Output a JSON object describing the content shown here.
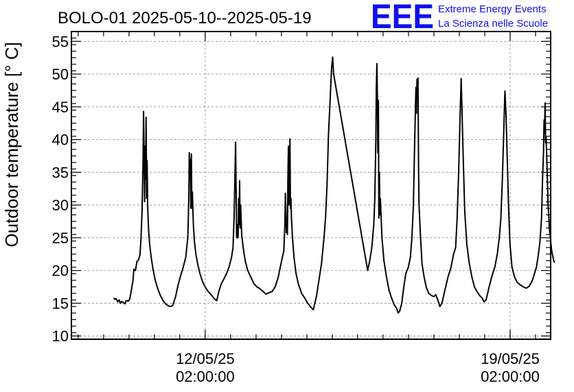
{
  "title": "BOLO-01 2025-05-10--2025-05-19",
  "logo": {
    "mark": "EEE",
    "line1": "Extreme Energy Events",
    "line2": "La Scienza nelle Scuole",
    "color": "#1010ee"
  },
  "chart_data": {
    "type": "line",
    "title": "BOLO-01 2025-05-10--2025-05-19",
    "ylabel": "Outdoor temperature [° C]",
    "xlabel": "",
    "ylim": [
      9.5,
      56.5
    ],
    "y_ticks": [
      10,
      15,
      20,
      25,
      30,
      35,
      40,
      45,
      50,
      55
    ],
    "x_unit": "days since 2025-05-10 00:00",
    "xlim": [
      -0.55,
      8.88
    ],
    "x_ticks": [
      {
        "x": 2.083,
        "line1": "12/05/25",
        "line2": "02:00:00"
      },
      {
        "x": 8.083,
        "line1": "19/05/25",
        "line2": "02:00:00"
      }
    ],
    "grid": true,
    "series": [
      {
        "values": [
          [
            0.28,
            15.8
          ],
          [
            0.31,
            15.6
          ],
          [
            0.33,
            15.7
          ],
          [
            0.36,
            15.2
          ],
          [
            0.39,
            15.5
          ],
          [
            0.41,
            15.0
          ],
          [
            0.44,
            15.3
          ],
          [
            0.47,
            15.1
          ],
          [
            0.5,
            14.9
          ],
          [
            0.53,
            15.4
          ],
          [
            0.57,
            15.3
          ],
          [
            0.6,
            15.7
          ],
          [
            0.63,
            17.0
          ],
          [
            0.66,
            18.4
          ],
          [
            0.68,
            20.2
          ],
          [
            0.71,
            20.0
          ],
          [
            0.74,
            21.4
          ],
          [
            0.77,
            21.6
          ],
          [
            0.8,
            22.4
          ],
          [
            0.82,
            25.0
          ],
          [
            0.84,
            29.0
          ],
          [
            0.86,
            37.0
          ],
          [
            0.87,
            44.3
          ],
          [
            0.88,
            38.5
          ],
          [
            0.89,
            30.5
          ],
          [
            0.9,
            39.0
          ],
          [
            0.91,
            34.0
          ],
          [
            0.92,
            43.4
          ],
          [
            0.93,
            31.0
          ],
          [
            0.94,
            36.8
          ],
          [
            0.95,
            30.0
          ],
          [
            0.97,
            26.0
          ],
          [
            0.99,
            24.0
          ],
          [
            1.02,
            22.0
          ],
          [
            1.06,
            20.0
          ],
          [
            1.1,
            18.5
          ],
          [
            1.15,
            17.2
          ],
          [
            1.2,
            16.2
          ],
          [
            1.26,
            15.3
          ],
          [
            1.32,
            14.8
          ],
          [
            1.38,
            14.5
          ],
          [
            1.44,
            14.6
          ],
          [
            1.5,
            16.0
          ],
          [
            1.55,
            17.8
          ],
          [
            1.6,
            19.2
          ],
          [
            1.65,
            20.5
          ],
          [
            1.7,
            22.0
          ],
          [
            1.74,
            25.0
          ],
          [
            1.76,
            31.0
          ],
          [
            1.77,
            38.0
          ],
          [
            1.78,
            34.0
          ],
          [
            1.79,
            37.0
          ],
          [
            1.8,
            29.5
          ],
          [
            1.81,
            37.8
          ],
          [
            1.82,
            29.5
          ],
          [
            1.83,
            32.0
          ],
          [
            1.85,
            27.0
          ],
          [
            1.87,
            24.5
          ],
          [
            1.9,
            22.5
          ],
          [
            1.94,
            20.8
          ],
          [
            1.98,
            19.5
          ],
          [
            2.03,
            18.3
          ],
          [
            2.08,
            17.5
          ],
          [
            2.14,
            16.8
          ],
          [
            2.2,
            16.3
          ],
          [
            2.26,
            15.7
          ],
          [
            2.31,
            15.4
          ],
          [
            2.35,
            16.8
          ],
          [
            2.4,
            18.0
          ],
          [
            2.45,
            18.7
          ],
          [
            2.5,
            19.5
          ],
          [
            2.55,
            20.5
          ],
          [
            2.6,
            22.0
          ],
          [
            2.63,
            23.5
          ],
          [
            2.65,
            28.0
          ],
          [
            2.67,
            35.0
          ],
          [
            2.68,
            39.6
          ],
          [
            2.69,
            33.0
          ],
          [
            2.7,
            25.0
          ],
          [
            2.71,
            27.0
          ],
          [
            2.73,
            25.0
          ],
          [
            2.74,
            31.0
          ],
          [
            2.75,
            27.0
          ],
          [
            2.76,
            33.7
          ],
          [
            2.77,
            26.5
          ],
          [
            2.78,
            30.0
          ],
          [
            2.8,
            25.5
          ],
          [
            2.83,
            23.5
          ],
          [
            2.87,
            21.5
          ],
          [
            2.92,
            20.0
          ],
          [
            2.98,
            19.0
          ],
          [
            3.04,
            18.0
          ],
          [
            3.1,
            17.5
          ],
          [
            3.16,
            17.2
          ],
          [
            3.22,
            16.8
          ],
          [
            3.28,
            16.4
          ],
          [
            3.34,
            16.6
          ],
          [
            3.4,
            16.8
          ],
          [
            3.46,
            17.5
          ],
          [
            3.52,
            19.0
          ],
          [
            3.56,
            20.5
          ],
          [
            3.6,
            22.0
          ],
          [
            3.63,
            23.0
          ],
          [
            3.65,
            27.0
          ],
          [
            3.66,
            31.8
          ],
          [
            3.67,
            29.0
          ],
          [
            3.68,
            25.8
          ],
          [
            3.69,
            28.0
          ],
          [
            3.7,
            25.5
          ],
          [
            3.71,
            34.0
          ],
          [
            3.72,
            39.0
          ],
          [
            3.73,
            30.0
          ],
          [
            3.74,
            35.0
          ],
          [
            3.75,
            40.1
          ],
          [
            3.76,
            29.5
          ],
          [
            3.77,
            31.0
          ],
          [
            3.78,
            28.0
          ],
          [
            3.8,
            25.0
          ],
          [
            3.83,
            22.0
          ],
          [
            3.87,
            19.5
          ],
          [
            3.92,
            17.8
          ],
          [
            3.98,
            16.5
          ],
          [
            4.04,
            15.8
          ],
          [
            4.1,
            15.0
          ],
          [
            4.16,
            14.4
          ],
          [
            4.21,
            14.0
          ],
          [
            4.27,
            16.0
          ],
          [
            4.32,
            18.5
          ],
          [
            4.37,
            21.0
          ],
          [
            4.42,
            25.0
          ],
          [
            4.45,
            28.0
          ],
          [
            4.48,
            33.0
          ],
          [
            4.51,
            41.0
          ],
          [
            4.54,
            46.0
          ],
          [
            4.57,
            51.0
          ],
          [
            4.59,
            52.6
          ],
          [
            4.61,
            50.0
          ],
          [
            5.28,
            20.0
          ],
          [
            5.32,
            21.5
          ],
          [
            5.36,
            23.5
          ],
          [
            5.4,
            27.0
          ],
          [
            5.42,
            31.0
          ],
          [
            5.44,
            40.0
          ],
          [
            5.45,
            48.0
          ],
          [
            5.46,
            51.6
          ],
          [
            5.47,
            47.0
          ],
          [
            5.48,
            38.0
          ],
          [
            5.49,
            46.0
          ],
          [
            5.5,
            28.0
          ],
          [
            5.51,
            35.0
          ],
          [
            5.52,
            28.5
          ],
          [
            5.53,
            31.0
          ],
          [
            5.56,
            25.0
          ],
          [
            5.6,
            21.5
          ],
          [
            5.65,
            19.0
          ],
          [
            5.7,
            17.0
          ],
          [
            5.75,
            15.8
          ],
          [
            5.8,
            14.8
          ],
          [
            5.85,
            14.2
          ],
          [
            5.88,
            13.5
          ],
          [
            5.91,
            13.8
          ],
          [
            5.95,
            15.0
          ],
          [
            5.99,
            17.5
          ],
          [
            6.03,
            19.5
          ],
          [
            6.08,
            20.5
          ],
          [
            6.12,
            22.0
          ],
          [
            6.15,
            25.0
          ],
          [
            6.18,
            30.0
          ],
          [
            6.2,
            38.0
          ],
          [
            6.22,
            45.0
          ],
          [
            6.23,
            48.0
          ],
          [
            6.24,
            44.0
          ],
          [
            6.25,
            49.2
          ],
          [
            6.26,
            47.0
          ],
          [
            6.27,
            49.4
          ],
          [
            6.28,
            36.0
          ],
          [
            6.29,
            30.0
          ],
          [
            6.32,
            25.0
          ],
          [
            6.35,
            21.0
          ],
          [
            6.39,
            19.0
          ],
          [
            6.43,
            17.5
          ],
          [
            6.48,
            16.5
          ],
          [
            6.53,
            16.2
          ],
          [
            6.58,
            16.0
          ],
          [
            6.62,
            16.3
          ],
          [
            6.66,
            15.5
          ],
          [
            6.7,
            14.5
          ],
          [
            6.74,
            15.0
          ],
          [
            6.8,
            17.0
          ],
          [
            6.86,
            19.0
          ],
          [
            6.92,
            20.5
          ],
          [
            6.97,
            22.5
          ],
          [
            7.01,
            23.5
          ],
          [
            7.04,
            28.0
          ],
          [
            7.07,
            35.0
          ],
          [
            7.1,
            44.0
          ],
          [
            7.12,
            49.3
          ],
          [
            7.14,
            43.0
          ],
          [
            7.16,
            37.0
          ],
          [
            7.19,
            29.0
          ],
          [
            7.23,
            24.0
          ],
          [
            7.28,
            21.0
          ],
          [
            7.33,
            19.0
          ],
          [
            7.38,
            17.5
          ],
          [
            7.43,
            16.8
          ],
          [
            7.48,
            16.2
          ],
          [
            7.53,
            15.8
          ],
          [
            7.57,
            15.2
          ],
          [
            7.61,
            15.5
          ],
          [
            7.67,
            17.5
          ],
          [
            7.72,
            19.0
          ],
          [
            7.78,
            20.5
          ],
          [
            7.83,
            22.5
          ],
          [
            7.87,
            25.0
          ],
          [
            7.9,
            28.0
          ],
          [
            7.93,
            34.0
          ],
          [
            7.96,
            42.0
          ],
          [
            7.98,
            47.4
          ],
          [
            8.0,
            44.0
          ],
          [
            8.02,
            39.0
          ],
          [
            8.05,
            30.0
          ],
          [
            8.08,
            24.0
          ],
          [
            8.12,
            20.5
          ],
          [
            8.17,
            19.0
          ],
          [
            8.22,
            18.2
          ],
          [
            8.28,
            17.8
          ],
          [
            8.34,
            17.5
          ],
          [
            8.4,
            17.3
          ],
          [
            8.46,
            17.6
          ],
          [
            8.52,
            18.5
          ],
          [
            8.56,
            19.5
          ],
          [
            8.6,
            20.5
          ],
          [
            8.64,
            22.5
          ],
          [
            8.67,
            24.5
          ],
          [
            8.7,
            28.0
          ],
          [
            8.72,
            34.0
          ],
          [
            8.74,
            38.0
          ],
          [
            8.75,
            43.0
          ],
          [
            8.76,
            41.0
          ],
          [
            8.77,
            45.6
          ],
          [
            8.78,
            39.5
          ],
          [
            8.79,
            40.5
          ],
          [
            8.8,
            38.0
          ],
          [
            8.83,
            30.0
          ],
          [
            8.86,
            26.0
          ],
          [
            8.9,
            23.0
          ],
          [
            8.94,
            21.5
          ],
          [
            8.96,
            21.2
          ]
        ]
      }
    ]
  }
}
